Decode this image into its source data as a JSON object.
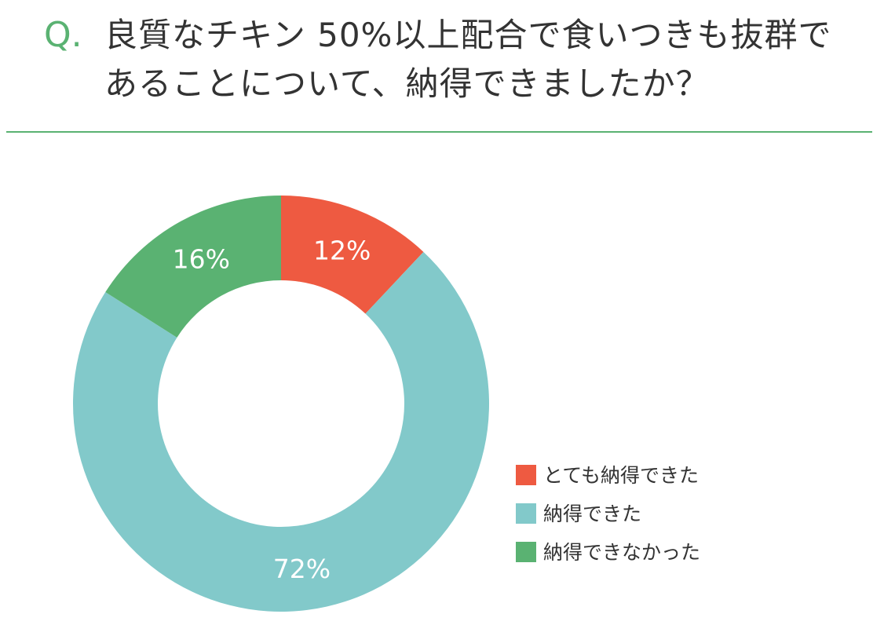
{
  "chart_data": {
    "type": "donut",
    "question_label": "Q.",
    "title": "良質なチキン 50%以上配合で食いつきも抜群であることについて、納得できましたか？",
    "categories": [
      "とても納得できた",
      "納得できた",
      "納得できなかった"
    ],
    "values": [
      12,
      72,
      16
    ],
    "value_labels": [
      "12%",
      "72%",
      "16%"
    ],
    "colors": [
      "#ee5a41",
      "#82c9ca",
      "#5ab272"
    ],
    "legend": "right"
  }
}
